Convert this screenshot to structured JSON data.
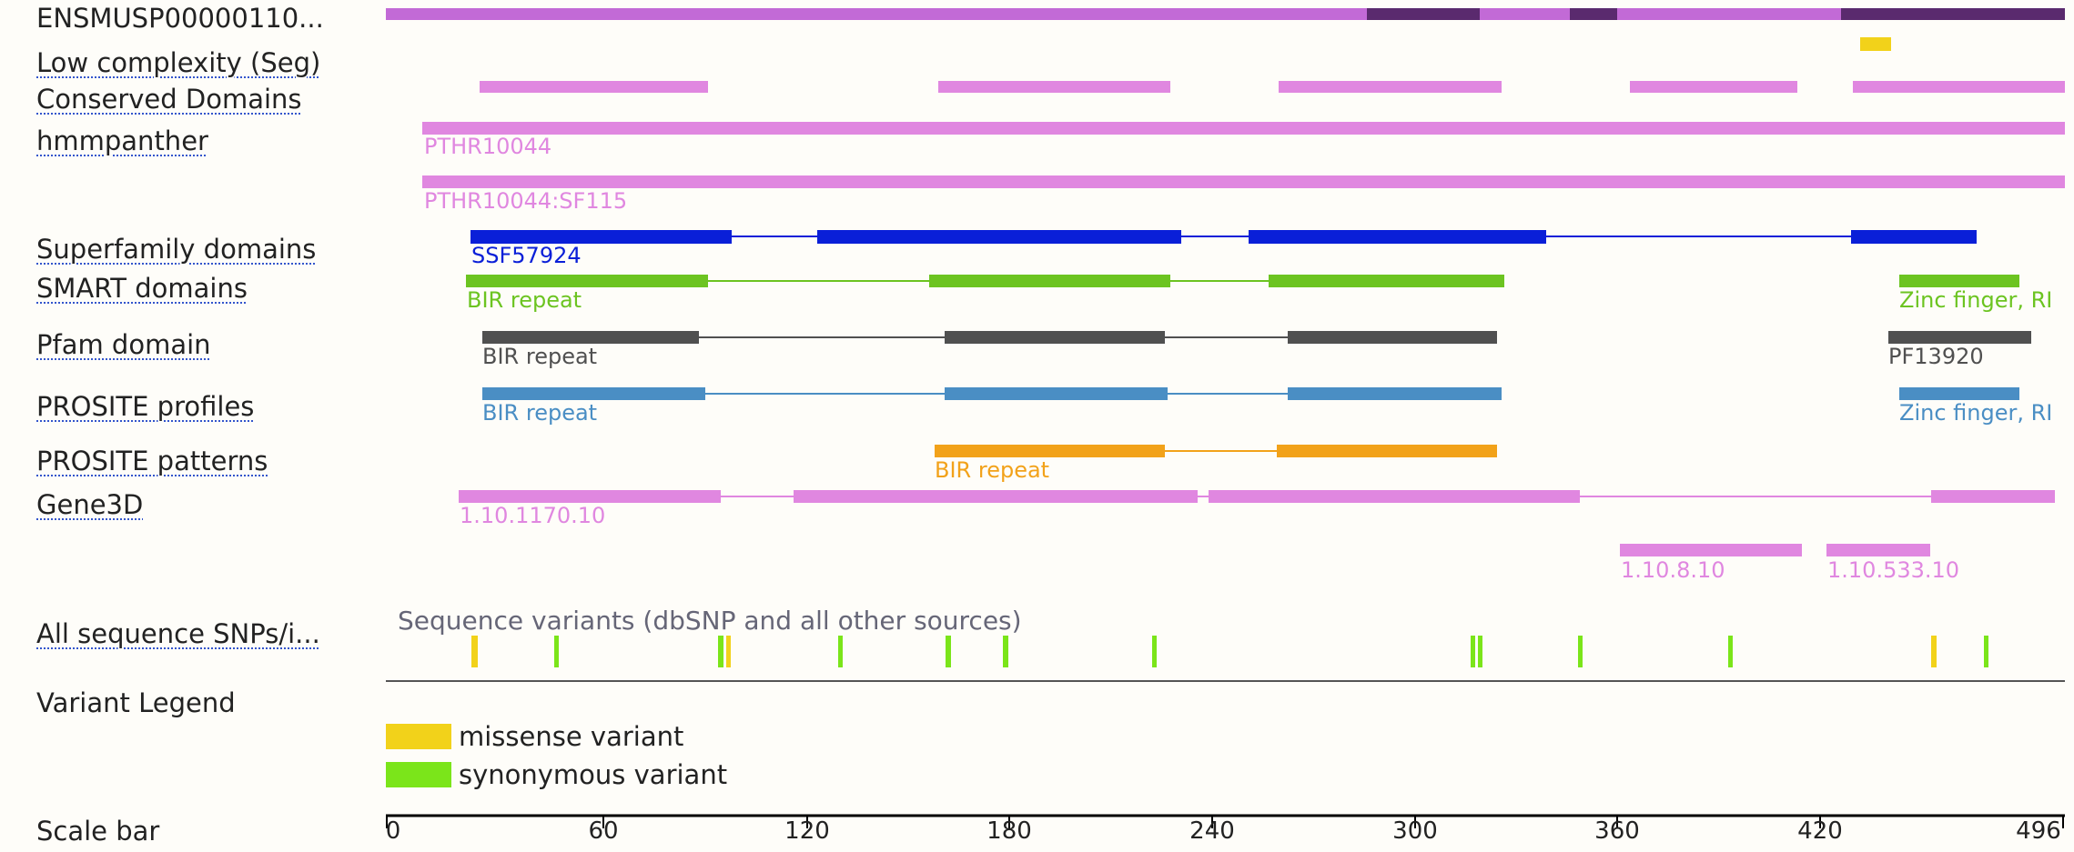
{
  "tracks": {
    "protein": "ENSMUSP00000110...",
    "low_complexity": "Low complexity (Seg)",
    "conserved": "Conserved Domains",
    "hmmpanther": "hmmpanther",
    "superfamily": "Superfamily domains",
    "smart": "SMART domains",
    "pfam": "Pfam domain",
    "prosite_profiles": "PROSITE profiles",
    "prosite_patterns": "PROSITE patterns",
    "gene3d": "Gene3D",
    "snps": "All sequence SNPs/i...",
    "variant_legend": "Variant Legend",
    "scale_bar": "Scale bar"
  },
  "feature_labels": {
    "panther1": "PTHR10044",
    "panther2": "PTHR10044:SF115",
    "ssf": "SSF57924",
    "smart_bir": "BIR repeat",
    "smart_zinc": "Zinc finger, RI",
    "pfam_bir": "BIR repeat",
    "pfam_pf": "PF13920",
    "prosite_bir": "BIR repeat",
    "prosite_zinc": "Zinc finger, RI",
    "patterns_bir": "BIR repeat",
    "gene3d_a": "1.10.1170.10",
    "gene3d_b": "1.10.8.10",
    "gene3d_c": "1.10.533.10"
  },
  "variants_subtitle": "Sequence variants (dbSNP and all other sources)",
  "legend": [
    {
      "label": "missense variant",
      "color": "#f2d21a"
    },
    {
      "label": "synonymous variant",
      "color": "#7be51a"
    }
  ],
  "scale": {
    "ticks": [
      "0",
      "60",
      "120",
      "180",
      "240",
      "300",
      "360",
      "420",
      "496"
    ]
  },
  "colors": {
    "protein": "#c26ad6",
    "protein_dark": "#5a2a6e",
    "conserved": "#e087e0",
    "superfamily": "#0a1fd8",
    "smart": "#6cc421",
    "pfam": "#505050",
    "prosite": "#4a8ec4",
    "patterns": "#f2a21a",
    "low_complexity": "#f2d21a"
  }
}
